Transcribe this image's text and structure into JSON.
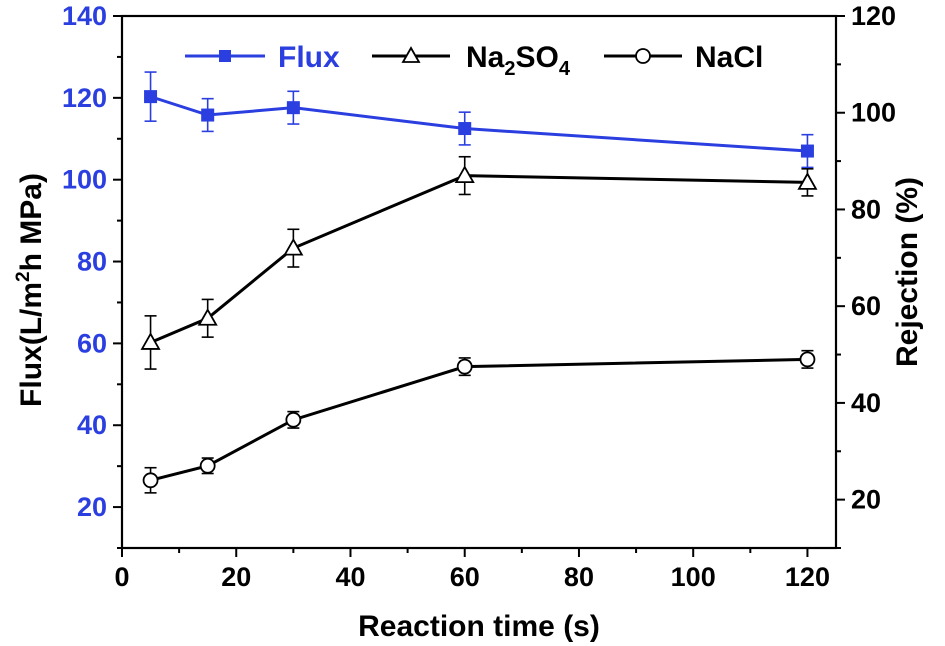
{
  "chart_data": {
    "type": "line",
    "xlabel": "Reaction time (s)",
    "ylabel": "Flux(L/m",
    "ylabel_sup": "2",
    "ylabel_end": "h MPa)",
    "y2label": "Rejection (%)",
    "xlim": [
      0,
      125
    ],
    "ylim": [
      10,
      140
    ],
    "y2lim": [
      10,
      120
    ],
    "x_ticks": [
      "0",
      "20",
      "40",
      "60",
      "80",
      "100",
      "120"
    ],
    "y_ticks": [
      "20",
      "40",
      "60",
      "80",
      "100",
      "120",
      "140"
    ],
    "y2_ticks": [
      "20",
      "40",
      "60",
      "80",
      "100",
      "120"
    ],
    "grid": false,
    "legend_position": "top",
    "x": [
      5,
      15,
      30,
      60,
      120
    ],
    "series": [
      {
        "name": "Flux",
        "axis": "left",
        "marker": "square",
        "color": "#2b3fe0",
        "values": [
          120.3,
          115.8,
          117.6,
          112.5,
          107.0
        ],
        "errors": [
          6.0,
          4.0,
          4.0,
          4.0,
          4.0
        ]
      },
      {
        "name": "Na2SO4",
        "name_parts": [
          "Na",
          "2",
          "SO",
          "4"
        ],
        "axis": "right",
        "marker": "triangle-open",
        "color": "#000000",
        "values": [
          52.5,
          57.5,
          72.0,
          87.0,
          85.6
        ],
        "errors": [
          5.5,
          3.9,
          3.9,
          3.9,
          2.8
        ]
      },
      {
        "name": "NaCl",
        "axis": "right",
        "marker": "circle-open",
        "color": "#000000",
        "values": [
          24.0,
          27.0,
          36.5,
          47.5,
          49.0
        ],
        "errors": [
          2.6,
          1.6,
          1.7,
          1.8,
          1.8
        ]
      }
    ]
  },
  "colors": {
    "left_axis": "#2b3fe0",
    "right_axis": "#000000"
  }
}
